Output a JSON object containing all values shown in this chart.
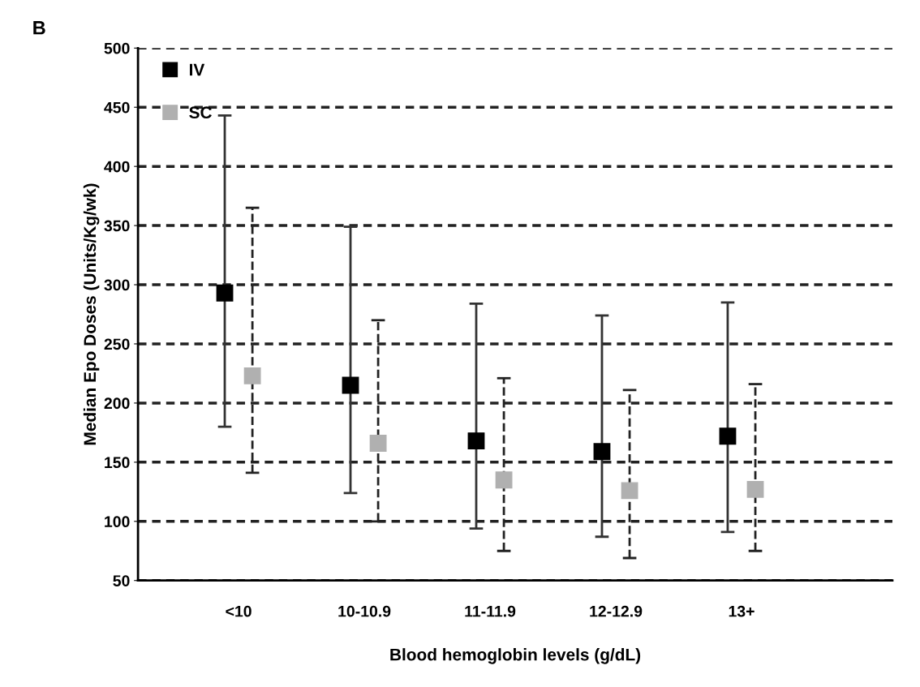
{
  "chart_data": {
    "type": "scatter",
    "xlabel": "Blood hemoglobin levels (g/dL)",
    "ylabel": "Median Epo Doses (Units/Kg/wk)",
    "annotations": [
      "B"
    ],
    "categories": [
      "<10",
      "10-10.9",
      "11-11.9",
      "12-12.9",
      "13+"
    ],
    "series": [
      {
        "name": "IV",
        "color": "#000000",
        "line_style": "solid",
        "values": [
          293,
          215,
          168,
          159,
          172
        ],
        "errors": [
          [
            180,
            443
          ],
          [
            124,
            349
          ],
          [
            94,
            284
          ],
          [
            87,
            274
          ],
          [
            91,
            285
          ]
        ]
      },
      {
        "name": "SC",
        "color": "#b0b0b0",
        "line_style": "dashed",
        "values": [
          223,
          166,
          135,
          126,
          127
        ],
        "errors": [
          [
            141,
            365
          ],
          [
            100,
            270
          ],
          [
            75,
            221
          ],
          [
            69,
            211
          ],
          [
            75,
            216
          ]
        ]
      }
    ],
    "ylim": [
      50,
      500
    ],
    "yticks": [
      50,
      100,
      150,
      200,
      250,
      300,
      350,
      400,
      450,
      500
    ],
    "grid": "y",
    "legend": "top left",
    "marker": "square"
  }
}
